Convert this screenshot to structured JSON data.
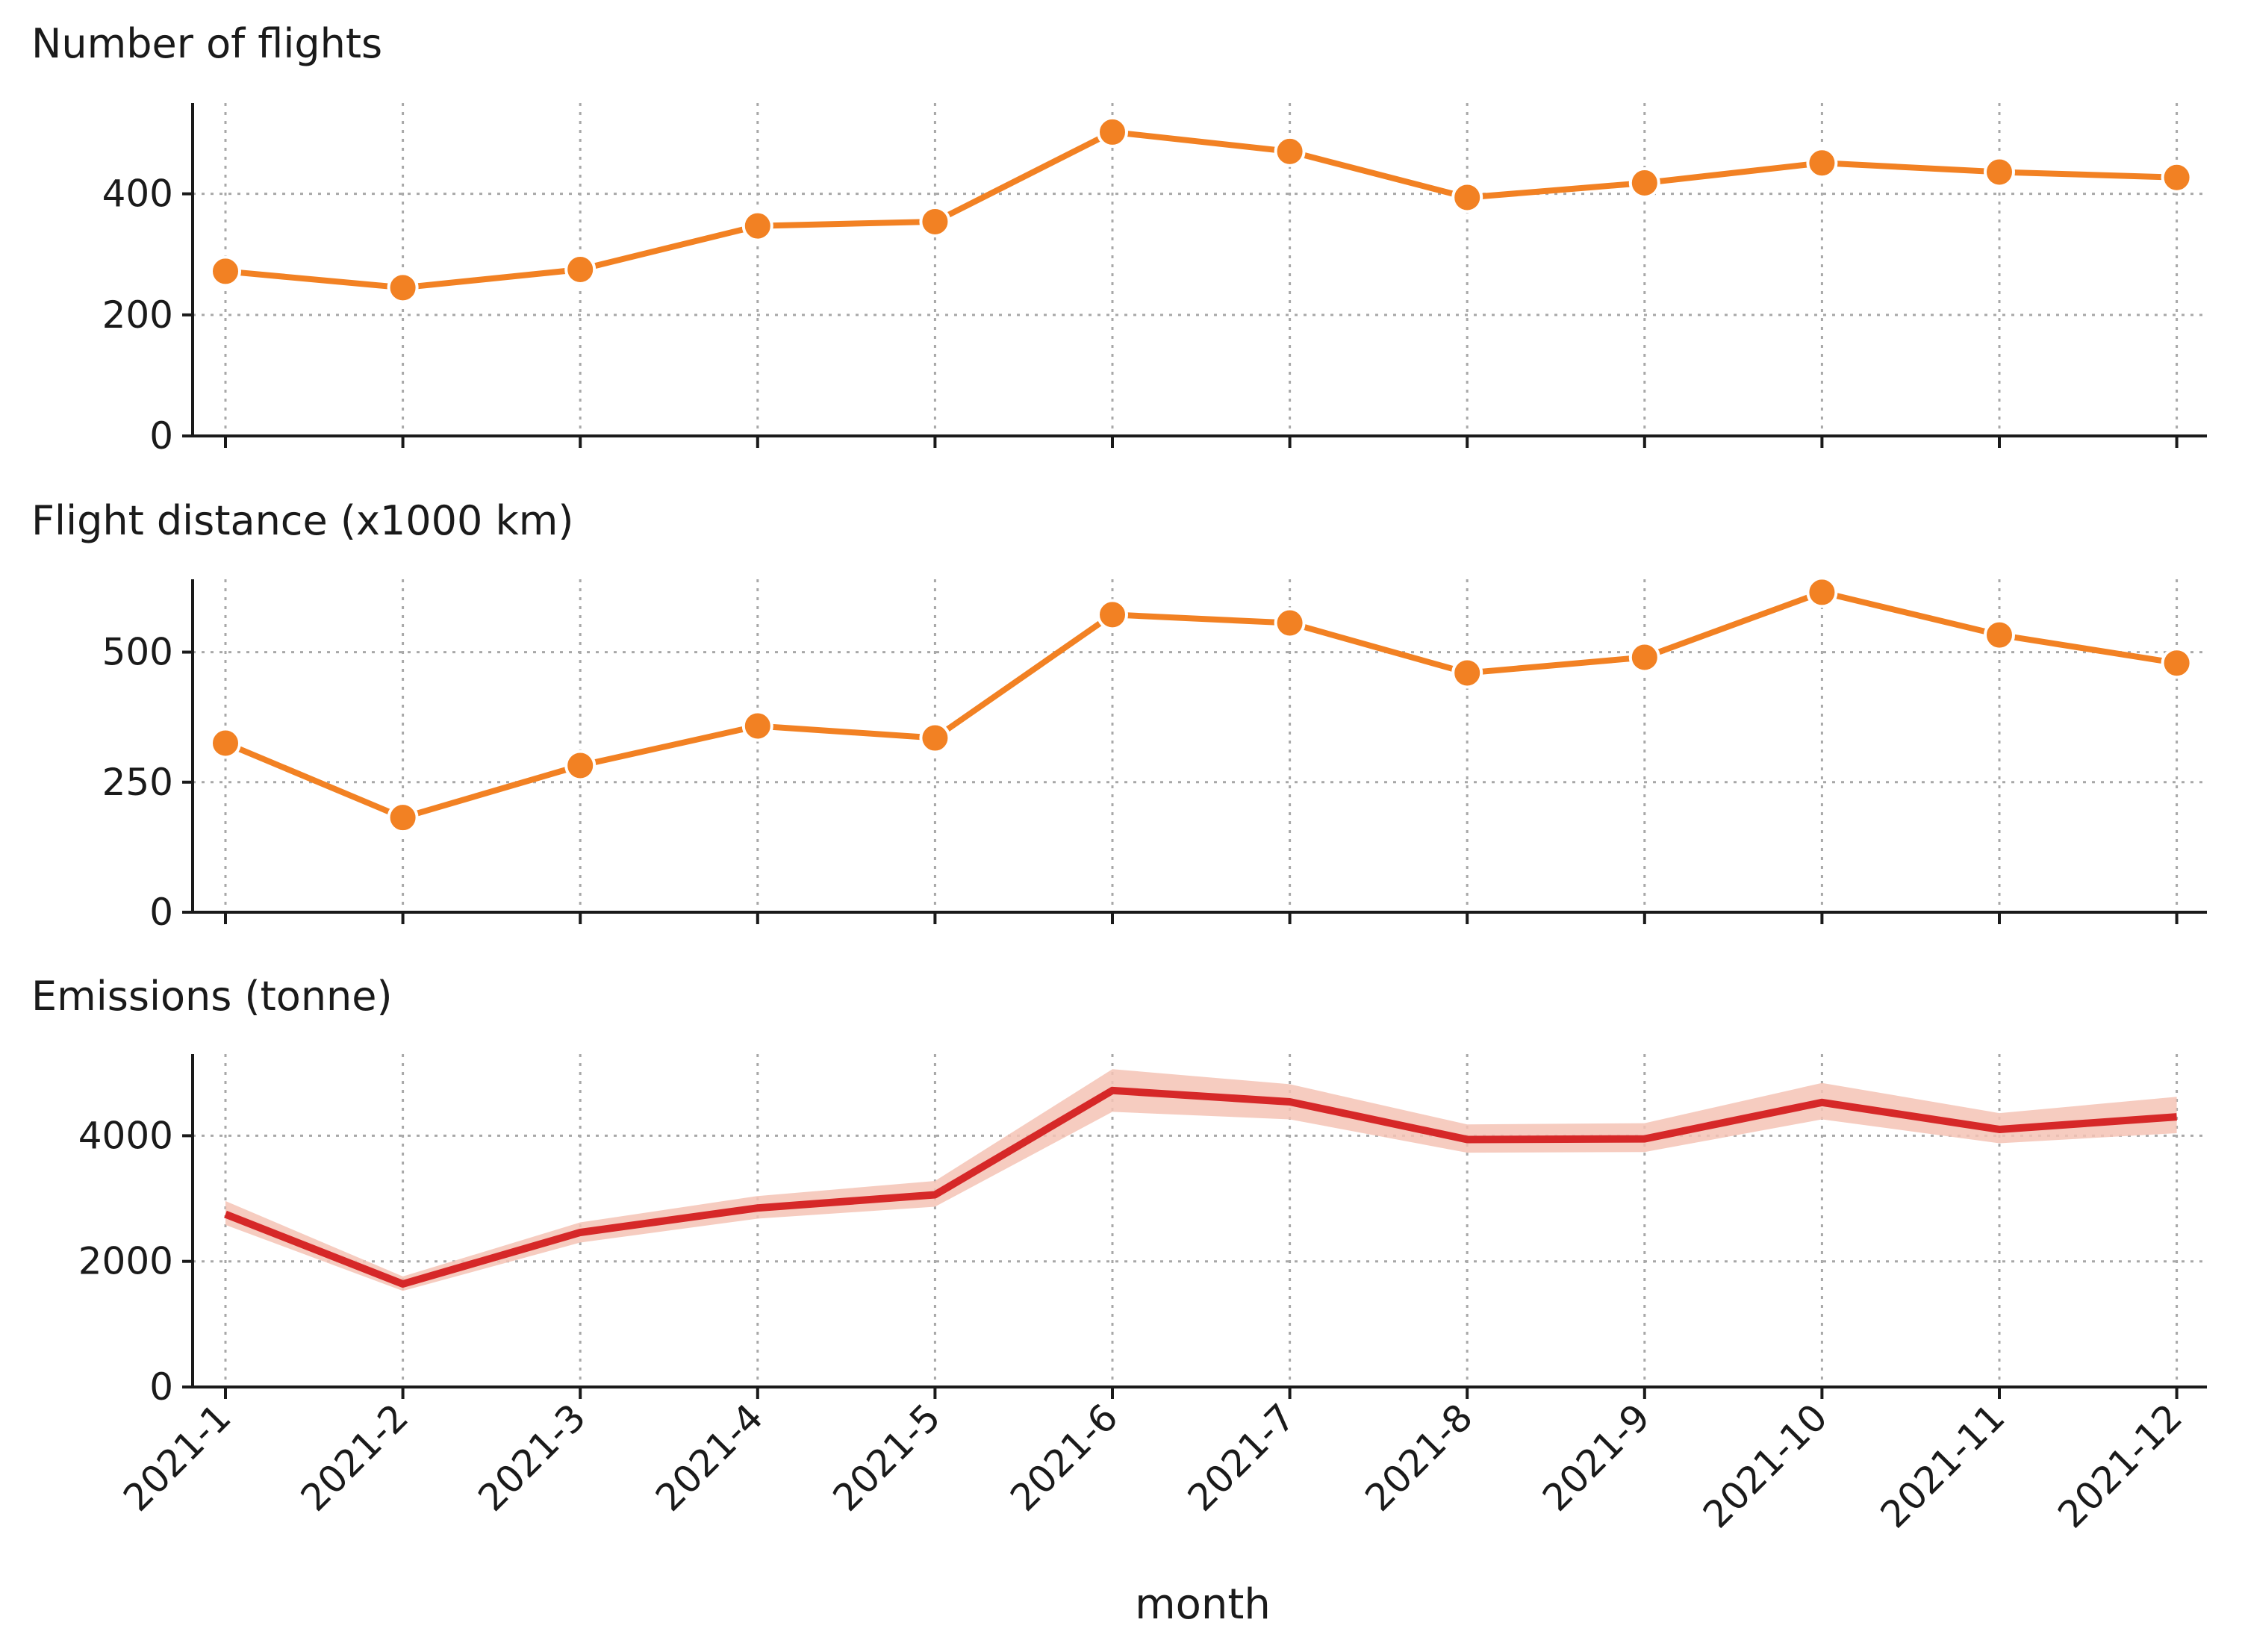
{
  "chart_data": {
    "type": "line",
    "xlabel": "month",
    "categories": [
      "2021-1",
      "2021-2",
      "2021-3",
      "2021-4",
      "2021-5",
      "2021-6",
      "2021-7",
      "2021-8",
      "2021-9",
      "2021-10",
      "2021-11",
      "2021-12"
    ],
    "panels": [
      {
        "title": "Number of flights",
        "type": "line",
        "style": "markers",
        "color": "#f28123",
        "ylim": [
          0,
          550
        ],
        "yticks": [
          0,
          200,
          400
        ],
        "values": [
          272,
          245,
          275,
          347,
          354,
          502,
          470,
          394,
          418,
          451,
          436,
          427
        ]
      },
      {
        "title": "Flight distance (x1000 km)",
        "type": "line",
        "style": "markers",
        "color": "#f28123",
        "ylim": [
          0,
          640
        ],
        "yticks": [
          0,
          250,
          500
        ],
        "values": [
          325,
          182,
          282,
          358,
          335,
          572,
          556,
          460,
          490,
          615,
          533,
          479
        ]
      },
      {
        "title": "Emissions (tonne)",
        "type": "area",
        "style": "band",
        "color": "#d62828",
        "band_color": "#f4c3b5",
        "ylim": [
          0,
          5300
        ],
        "yticks": [
          0,
          2000,
          4000
        ],
        "values": [
          2750,
          1640,
          2460,
          2850,
          3060,
          4720,
          4540,
          3940,
          3950,
          4530,
          4100,
          4300
        ],
        "lower": [
          2580,
          1530,
          2300,
          2680,
          2870,
          4380,
          4260,
          3730,
          3740,
          4260,
          3880,
          4040
        ],
        "upper": [
          2960,
          1760,
          2620,
          3040,
          3280,
          5060,
          4820,
          4180,
          4200,
          4840,
          4360,
          4620
        ]
      }
    ]
  }
}
